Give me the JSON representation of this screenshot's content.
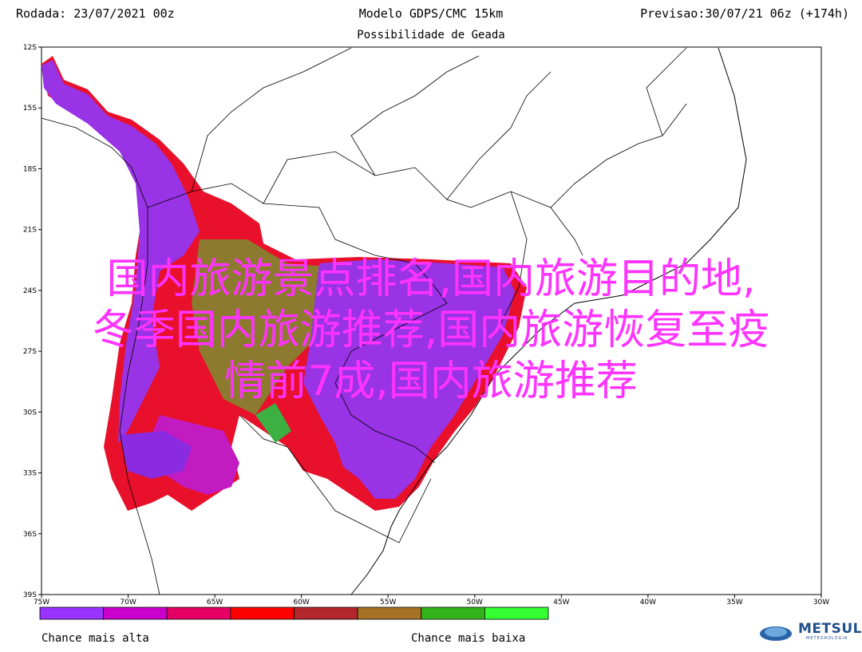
{
  "header": {
    "left": "Rodada: 23/07/2021 00z",
    "center": "Modelo GDPS/CMC 15km",
    "right": "Previsao:30/07/21 06z (+174h)",
    "subtitle": "Possibilidade de Geada"
  },
  "axes": {
    "lat_labels": [
      "12S",
      "15S",
      "18S",
      "21S",
      "24S",
      "27S",
      "30S",
      "33S",
      "36S",
      "39S"
    ],
    "lon_labels": [
      "75W",
      "70W",
      "65W",
      "60W",
      "55W",
      "50W",
      "45W",
      "40W",
      "35W",
      "30W"
    ]
  },
  "legend": {
    "colors": [
      "#9933ff",
      "#cc00cc",
      "#e60066",
      "#ff0000",
      "#b3262e",
      "#a67326",
      "#33b31a",
      "#33ff33"
    ],
    "left_label": "Chance mais alta",
    "right_label": "Chance mais baixa"
  },
  "overlay": {
    "line1": "国内旅游景点排名,国内旅游目的地,",
    "line2": "冬季国内旅游推荐,国内旅游恢复至疫",
    "line3": "情前7成,国内旅游推荐"
  },
  "logo": {
    "text": "METSUL",
    "sub": "METEOROLOGIA"
  }
}
